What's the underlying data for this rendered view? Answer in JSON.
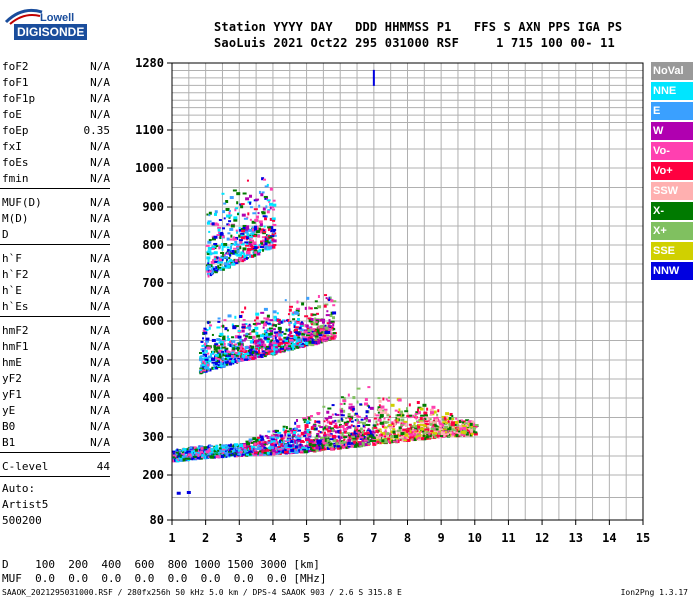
{
  "logo": {
    "top": "Lowell",
    "main": "DIGISONDE"
  },
  "header": {
    "line1": "Station YYYY DAY   DDD HHMMSS P1   FFS S AXN PPS IGA PS",
    "line2": "SaoLuis 2021 Oct22 295 031000 RSF     1 715 100 00- 11"
  },
  "params": [
    {
      "name": "foF2",
      "value": "N/A"
    },
    {
      "name": "foF1",
      "value": "N/A"
    },
    {
      "name": "foF1p",
      "value": "N/A"
    },
    {
      "name": "foE",
      "value": "N/A"
    },
    {
      "name": "foEp",
      "value": "0.35"
    },
    {
      "name": "fxI",
      "value": "N/A"
    },
    {
      "name": "foEs",
      "value": "N/A"
    },
    {
      "name": "fmin",
      "value": "N/A"
    },
    {
      "name": "MUF(D)",
      "value": "N/A"
    },
    {
      "name": "M(D)",
      "value": "N/A"
    },
    {
      "name": "D",
      "value": "N/A"
    },
    {
      "name": "h`F",
      "value": "N/A"
    },
    {
      "name": "h`F2",
      "value": "N/A"
    },
    {
      "name": "h`E",
      "value": "N/A"
    },
    {
      "name": "h`Es",
      "value": "N/A"
    },
    {
      "name": "hmF2",
      "value": "N/A"
    },
    {
      "name": "hmF1",
      "value": "N/A"
    },
    {
      "name": "hmE",
      "value": "N/A"
    },
    {
      "name": "yF2",
      "value": "N/A"
    },
    {
      "name": "yF1",
      "value": "N/A"
    },
    {
      "name": "yE",
      "value": "N/A"
    },
    {
      "name": "B0",
      "value": "N/A"
    },
    {
      "name": "B1",
      "value": "N/A"
    },
    {
      "name": "C-level",
      "value": "44"
    }
  ],
  "auto": {
    "line1": "Auto:",
    "line2": "Artist5",
    "line3": "500200"
  },
  "legend": [
    {
      "label": "NoVal",
      "color": "#999999"
    },
    {
      "label": "NNE",
      "color": "#00e5ff"
    },
    {
      "label": "E",
      "color": "#3aa0ff"
    },
    {
      "label": "W",
      "color": "#b000b0"
    },
    {
      "label": "Vo-",
      "color": "#ff40b0"
    },
    {
      "label": "Vo+",
      "color": "#ff0040"
    },
    {
      "label": "SSW",
      "color": "#ffb0b0"
    },
    {
      "label": "X-",
      "color": "#007a00"
    },
    {
      "label": "X+",
      "color": "#80c060"
    },
    {
      "label": "SSE",
      "color": "#d0d000"
    },
    {
      "label": "NNW",
      "color": "#0000e0"
    }
  ],
  "distance_table": {
    "d_line": "D    100  200  400  600  800 1000 1500 3000 [km]",
    "muf_line": "MUF  0.0  0.0  0.0  0.0  0.0  0.0  0.0  0.0 [MHz]"
  },
  "footer": {
    "left": "SAAOK_2021295031000.RSF / 280fx256h 50 kHz 5.0 km / DPS-4 SAAOK 903 / 2.6 S 315.8 E",
    "right": "Ion2Png 1.3.17"
  },
  "chart_data": {
    "type": "scatter",
    "title": "",
    "xlabel": "",
    "ylabel": "",
    "xlim": [
      1,
      15
    ],
    "ylim": [
      80,
      1280
    ],
    "x_ticks": [
      1,
      2,
      3,
      4,
      5,
      6,
      7,
      8,
      9,
      10,
      11,
      12,
      13,
      14,
      15
    ],
    "y_ticks": [
      80,
      200,
      300,
      400,
      500,
      600,
      700,
      800,
      900,
      1000,
      1100,
      1280
    ],
    "grid": true,
    "legend_position": "right",
    "traces": [
      {
        "name": "F-trace 1st hop lower edge",
        "x": [
          1.0,
          2.0,
          3.0,
          4.0,
          5.0,
          6.0,
          7.0,
          8.0,
          9.0,
          10.0
        ],
        "y": [
          240,
          250,
          255,
          260,
          265,
          275,
          285,
          295,
          305,
          310
        ]
      },
      {
        "name": "F-trace 2nd hop lower edge",
        "x": [
          1.8,
          3.0,
          4.0,
          5.0,
          5.8
        ],
        "y": [
          470,
          500,
          520,
          540,
          560
        ]
      },
      {
        "name": "F-trace 3rd hop lower edge",
        "x": [
          2.0,
          3.0,
          4.0
        ],
        "y": [
          720,
          760,
          800
        ]
      },
      {
        "name": "sporadic echo",
        "x": [
          7.0
        ],
        "y": [
          1240
        ]
      },
      {
        "name": "low echo",
        "x": [
          1.2,
          1.5
        ],
        "y": [
          150,
          152
        ]
      }
    ]
  }
}
